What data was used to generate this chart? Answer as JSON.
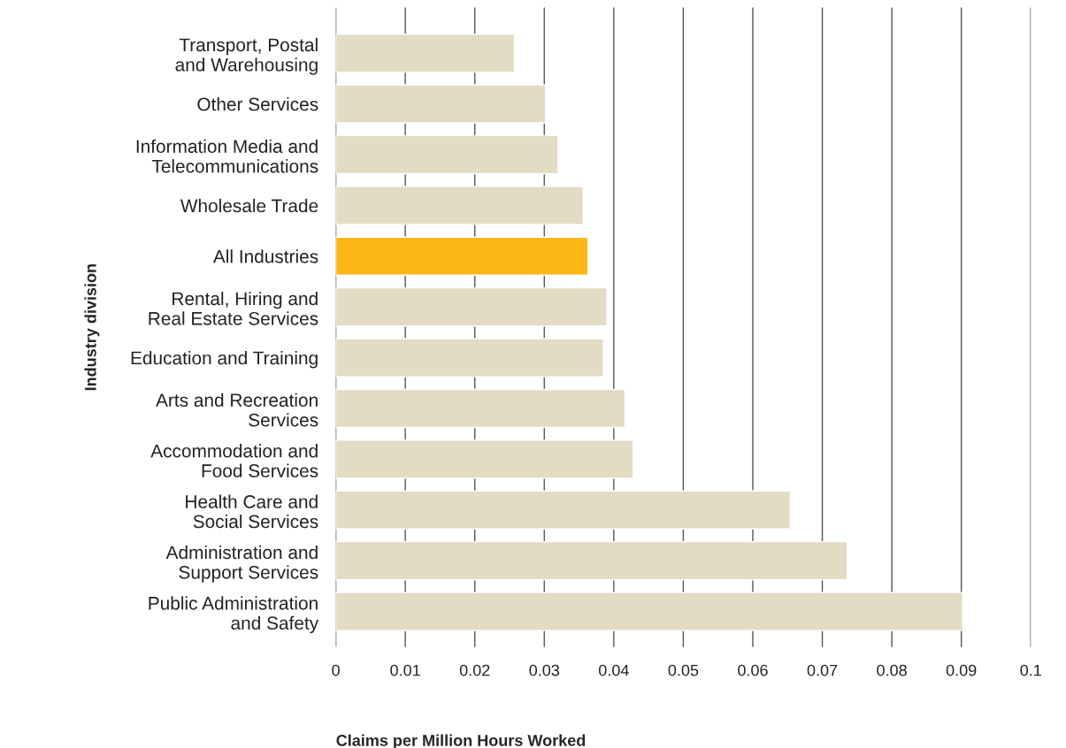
{
  "chart_data": {
    "type": "bar",
    "orientation": "horizontal",
    "xlabel": "Claims per Million Hours Worked",
    "ylabel": "Industry division",
    "categories": [
      "Transport, Postal\nand Warehousing",
      "Other Services",
      "Information Media and\nTelecommunications",
      "Wholesale Trade",
      "All Industries",
      "Rental, Hiring and\nReal Estate Services",
      "Education and Training",
      "Arts and Recreation\nServices",
      "Accommodation and\nFood Services",
      "Health Care and\nSocial Services",
      "Administration and\nSupport Services",
      "Public Administration\nand Safety"
    ],
    "values": [
      0.0257,
      0.0302,
      0.032,
      0.0356,
      0.0363,
      0.039,
      0.0385,
      0.0416,
      0.0428,
      0.0654,
      0.0736,
      0.0902
    ],
    "colors": [
      "#e3dbc4",
      "#e3dbc4",
      "#e3dbc4",
      "#e3dbc4",
      "#fbb817",
      "#e3dbc4",
      "#e3dbc4",
      "#e3dbc4",
      "#e3dbc4",
      "#e3dbc4",
      "#e3dbc4",
      "#e3dbc4"
    ],
    "xlim": [
      0,
      0.1
    ],
    "xticks": [
      0,
      0.01,
      0.02,
      0.03,
      0.04,
      0.05,
      0.06,
      0.07,
      0.08,
      0.09,
      0.1
    ],
    "grid": "x",
    "legend": false
  }
}
